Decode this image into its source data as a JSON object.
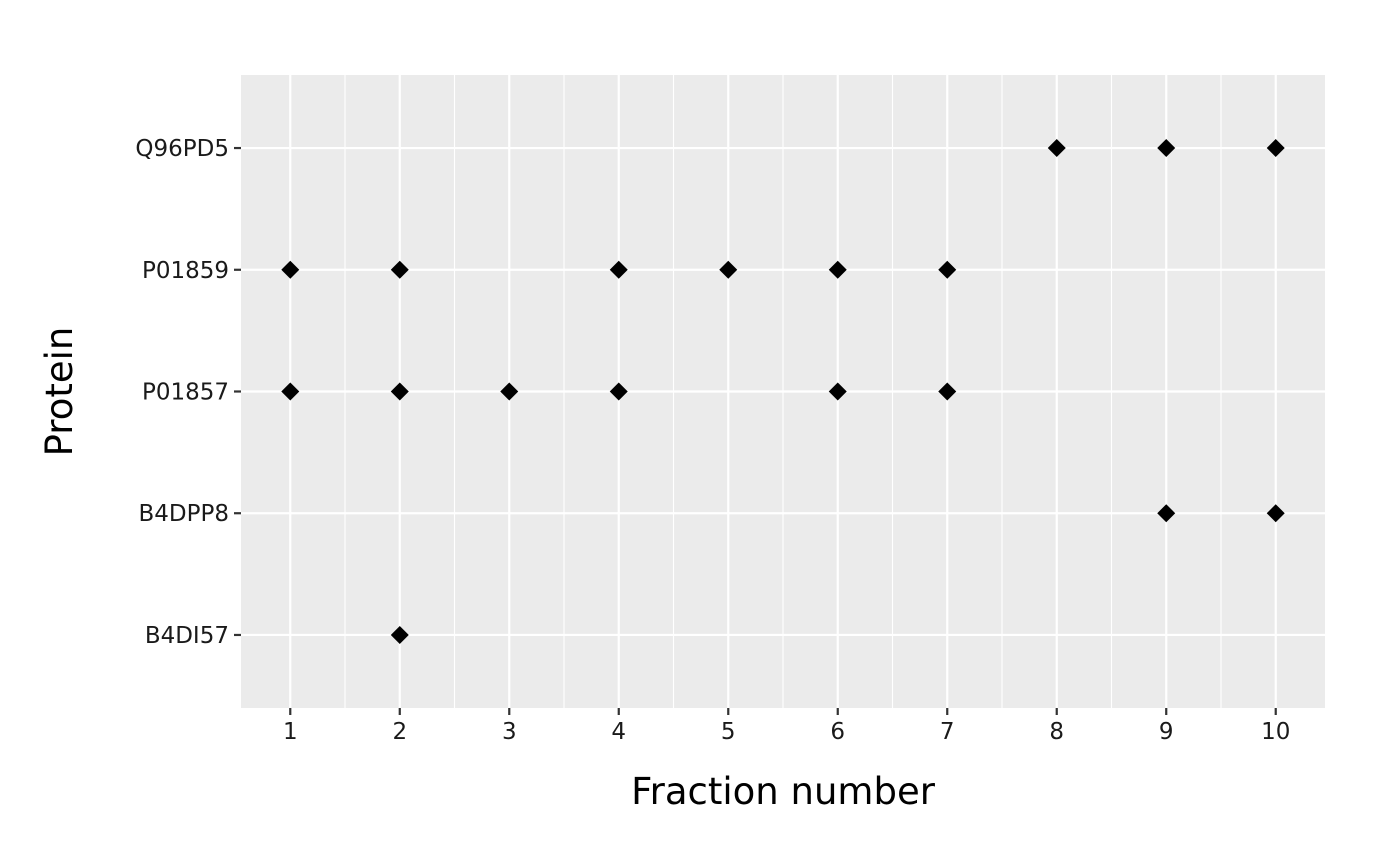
{
  "chart_data": {
    "type": "scatter",
    "title": "",
    "xlabel": "Fraction number",
    "ylabel": "Protein",
    "x_ticks": [
      1,
      2,
      3,
      4,
      5,
      6,
      7,
      8,
      9,
      10
    ],
    "xlim": [
      0.55,
      10.45
    ],
    "categories": [
      "B4DI57",
      "B4DPP8",
      "P01857",
      "P01859",
      "Q96PD5"
    ],
    "grid": true,
    "legend": "none",
    "colors": {
      "panel": "#ebebeb",
      "grid": "#ffffff",
      "point": "#000000",
      "tick": "#333333"
    },
    "points": [
      {
        "protein": "Q96PD5",
        "x": 8
      },
      {
        "protein": "Q96PD5",
        "x": 9
      },
      {
        "protein": "Q96PD5",
        "x": 10
      },
      {
        "protein": "P01859",
        "x": 1
      },
      {
        "protein": "P01859",
        "x": 2
      },
      {
        "protein": "P01859",
        "x": 4
      },
      {
        "protein": "P01859",
        "x": 5
      },
      {
        "protein": "P01859",
        "x": 6
      },
      {
        "protein": "P01859",
        "x": 7
      },
      {
        "protein": "P01857",
        "x": 1
      },
      {
        "protein": "P01857",
        "x": 2
      },
      {
        "protein": "P01857",
        "x": 3
      },
      {
        "protein": "P01857",
        "x": 4
      },
      {
        "protein": "P01857",
        "x": 6
      },
      {
        "protein": "P01857",
        "x": 7
      },
      {
        "protein": "B4DPP8",
        "x": 9
      },
      {
        "protein": "B4DPP8",
        "x": 10
      },
      {
        "protein": "B4DI57",
        "x": 2
      }
    ]
  }
}
